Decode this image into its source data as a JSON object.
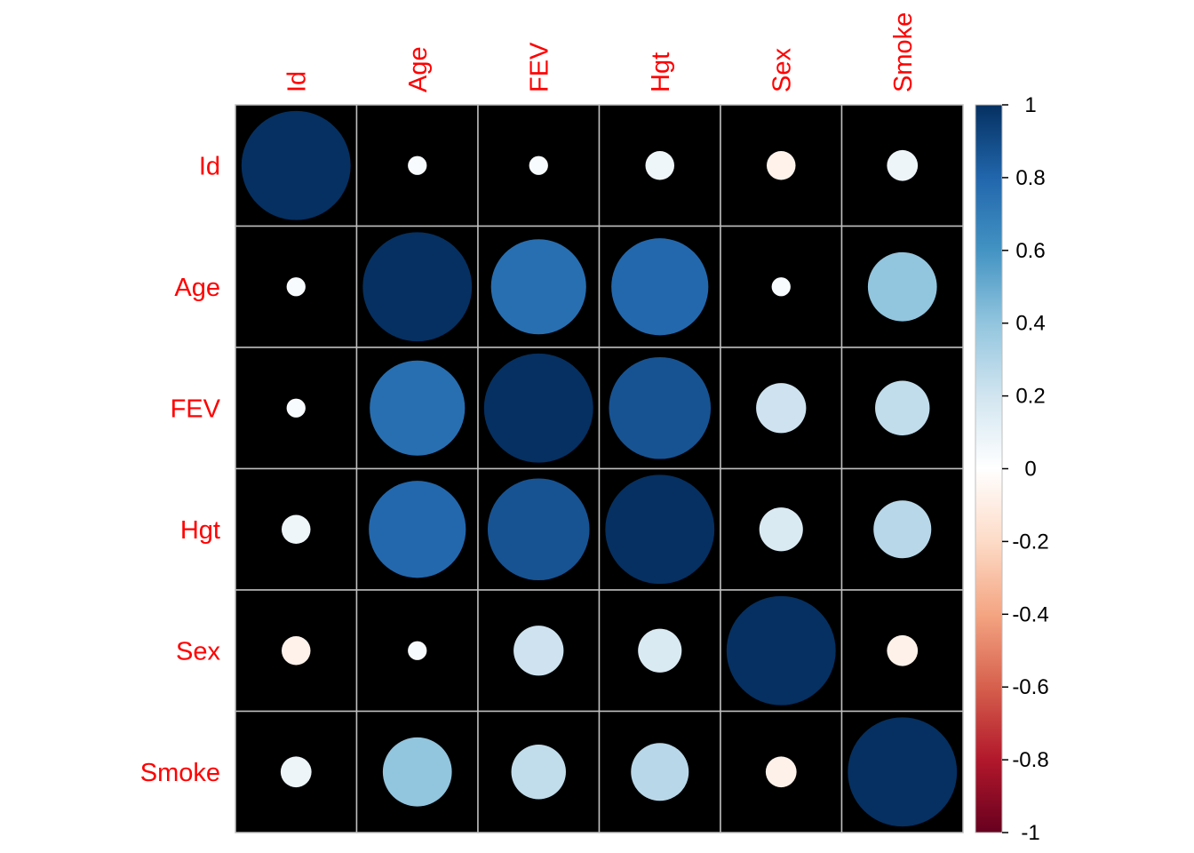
{
  "chart_data": {
    "type": "heatmap",
    "subtype": "correlation-circles",
    "title": "",
    "variables": [
      "Id",
      "Age",
      "FEV",
      "Hgt",
      "Sex",
      "Smoke"
    ],
    "matrix": [
      [
        1.0,
        0.03,
        0.03,
        0.07,
        -0.07,
        0.08
      ],
      [
        0.03,
        1.0,
        0.76,
        0.79,
        0.03,
        0.4
      ],
      [
        0.03,
        0.76,
        1.0,
        0.87,
        0.21,
        0.25
      ],
      [
        0.07,
        0.79,
        0.87,
        1.0,
        0.16,
        0.28
      ],
      [
        -0.07,
        0.03,
        0.21,
        0.16,
        1.0,
        -0.08
      ],
      [
        0.08,
        0.4,
        0.25,
        0.28,
        -0.08,
        1.0
      ]
    ],
    "color_scale": {
      "range": [
        -1,
        1
      ],
      "ticks": [
        "1",
        "0.8",
        "0.6",
        "0.4",
        "0.2",
        "0",
        "-0.2",
        "-0.4",
        "-0.6",
        "-0.8",
        "-1"
      ],
      "colors": [
        "#67001F",
        "#B2182B",
        "#D6604D",
        "#F4A582",
        "#FDDBC7",
        "#FFFFFF",
        "#D1E5F0",
        "#92C5DE",
        "#4393C3",
        "#2166AC",
        "#053061"
      ]
    },
    "cell_background": "#000000",
    "grid_color": "#bfbfbf",
    "label_color": "#ff0000"
  }
}
